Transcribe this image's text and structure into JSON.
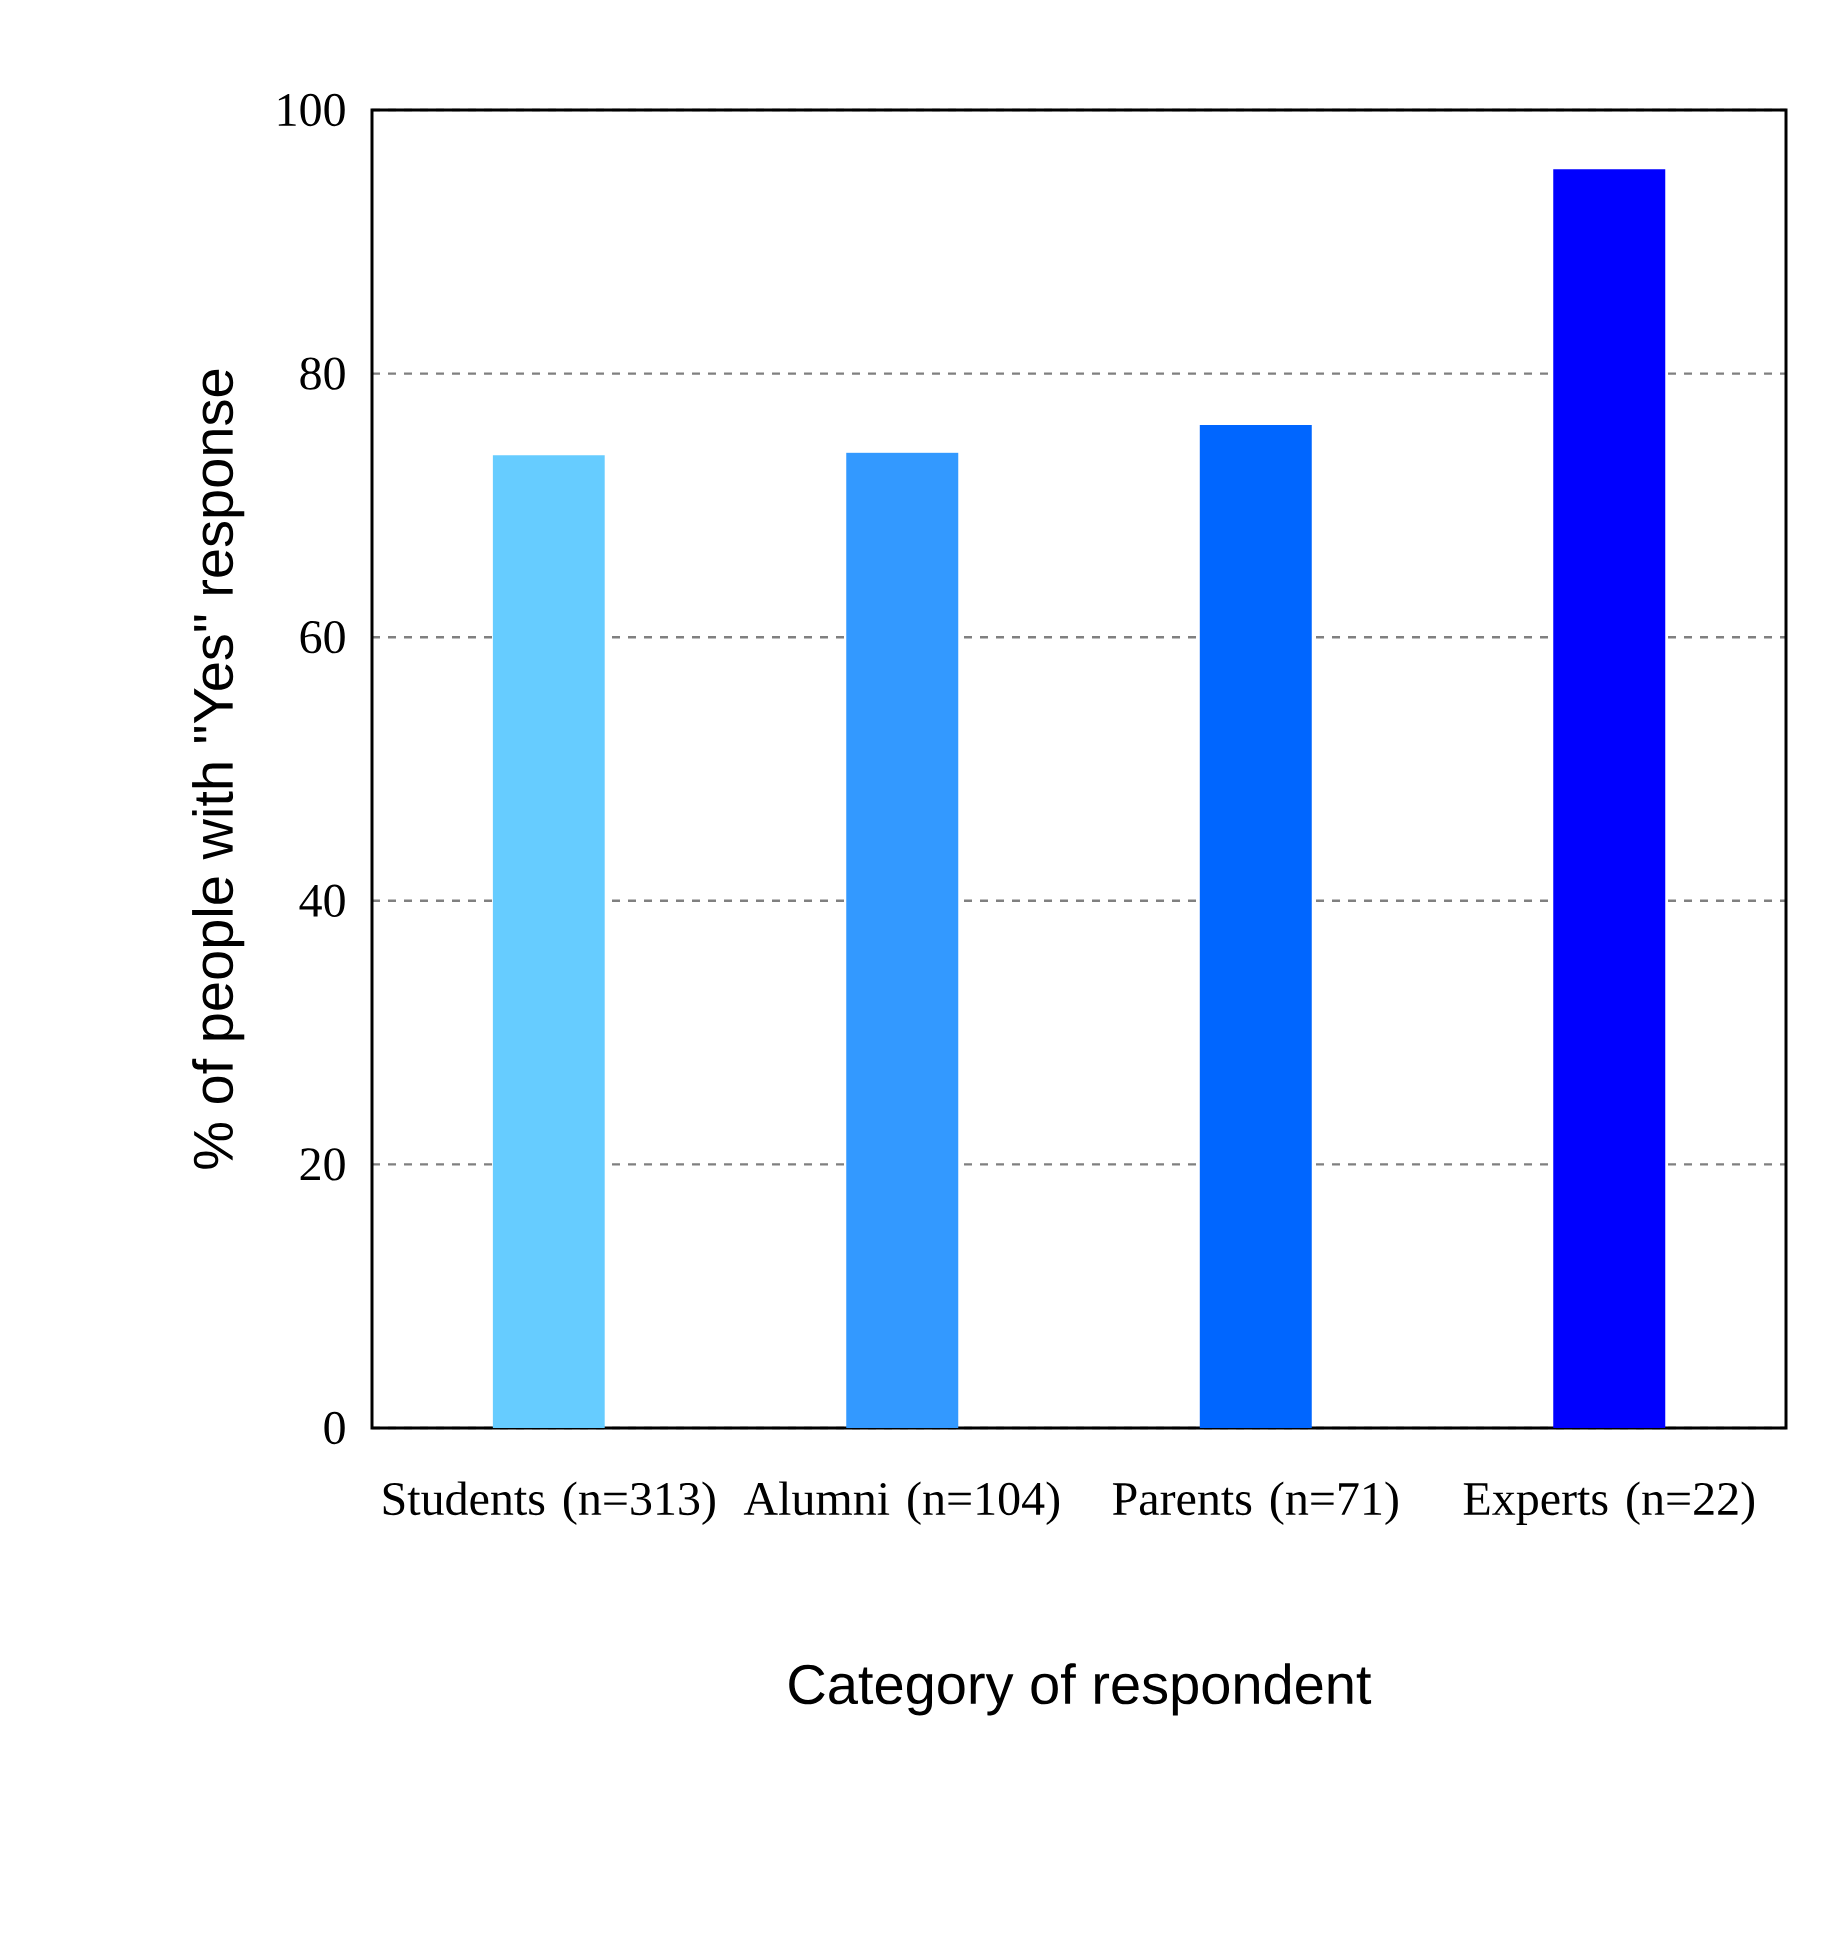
{
  "chart_data": {
    "type": "bar",
    "xlabel": "Category of respondent",
    "ylabel": "% of people with \"Yes\" response",
    "categories": [
      "Students (n=313)",
      "Alumni (n=104)",
      "Parents (n=71)",
      "Experts (n=22)"
    ],
    "values": [
      73.8,
      74.0,
      76.1,
      95.5
    ],
    "colors": [
      "#66ccff",
      "#3399ff",
      "#0066ff",
      "#0000ff"
    ],
    "ylim": [
      0,
      100
    ],
    "yticks": [
      0,
      20,
      40,
      60,
      80,
      100
    ],
    "grid": "y"
  }
}
